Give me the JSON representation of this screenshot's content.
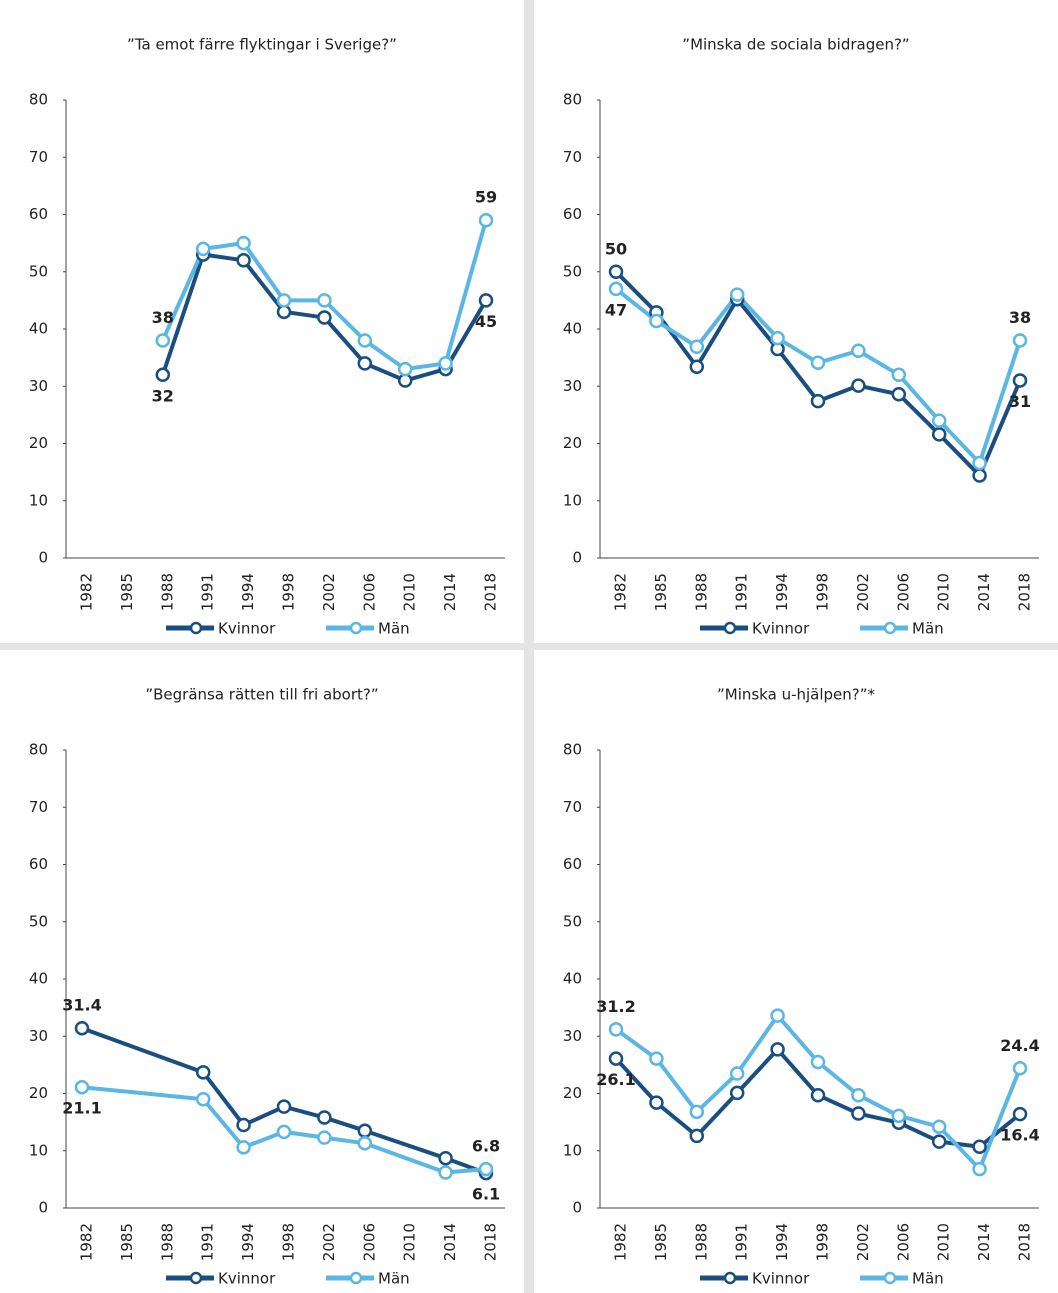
{
  "chart_data": [
    {
      "type": "line",
      "title": "”Ta emot färre flyktingar i Sverige?”",
      "categories": [
        "1982",
        "1985",
        "1988",
        "1991",
        "1994",
        "1998",
        "2002",
        "2006",
        "2010",
        "2014",
        "2018"
      ],
      "series": [
        {
          "name": "Kvinnor",
          "color": "#1a4e80",
          "values": [
            null,
            null,
            32,
            53,
            52,
            43,
            42,
            34,
            31,
            33,
            45
          ]
        },
        {
          "name": "Män",
          "color": "#5ab6e4",
          "values": [
            null,
            null,
            38,
            54,
            55,
            45,
            45,
            38,
            33,
            34,
            59
          ]
        }
      ],
      "ylim": [
        0,
        80
      ],
      "yticks": [
        0,
        10,
        20,
        30,
        40,
        50,
        60,
        70,
        80
      ],
      "grid": false,
      "connect_gaps": true,
      "legend": "bottom"
    },
    {
      "type": "line",
      "title": "”Minska de sociala bidragen?”",
      "categories": [
        "1982",
        "1985",
        "1988",
        "1991",
        "1994",
        "1998",
        "2002",
        "2006",
        "2010",
        "2014",
        "2018"
      ],
      "series": [
        {
          "name": "Kvinnor",
          "color": "#1a4e80",
          "values": [
            50,
            42.9,
            33.4,
            45.2,
            36.5,
            27.4,
            30.1,
            28.6,
            21.6,
            14.4,
            31
          ]
        },
        {
          "name": "Män",
          "color": "#5ab6e4",
          "values": [
            47,
            41.4,
            36.9,
            46,
            38.4,
            34.1,
            36.2,
            32,
            24,
            16.6,
            38
          ]
        }
      ],
      "ylim": [
        0,
        80
      ],
      "yticks": [
        0,
        10,
        20,
        30,
        40,
        50,
        60,
        70,
        80
      ],
      "grid": false,
      "connect_gaps": true,
      "legend": "bottom"
    },
    {
      "type": "line",
      "title": "”Begränsa rätten till fri abort?”",
      "categories": [
        "1982",
        "1985",
        "1988",
        "1991",
        "1994",
        "1998",
        "2002",
        "2006",
        "2010",
        "2014",
        "2018"
      ],
      "series": [
        {
          "name": "Kvinnor",
          "color": "#1a4e80",
          "values": [
            31.4,
            null,
            null,
            23.7,
            14.5,
            17.7,
            15.8,
            13.5,
            null,
            8.7,
            6.1
          ]
        },
        {
          "name": "Män",
          "color": "#5ab6e4",
          "values": [
            21.1,
            null,
            null,
            19,
            10.6,
            13.3,
            12.3,
            11.3,
            null,
            6.2,
            6.8
          ]
        }
      ],
      "ylim": [
        0,
        80
      ],
      "yticks": [
        0,
        10,
        20,
        30,
        40,
        50,
        60,
        70,
        80
      ],
      "grid": false,
      "connect_gaps": true,
      "legend": "bottom"
    },
    {
      "type": "line",
      "title": "”Minska u-hjälpen?”*",
      "categories": [
        "1982",
        "1985",
        "1988",
        "1991",
        "1994",
        "1998",
        "2002",
        "2006",
        "2010",
        "2014",
        "2018"
      ],
      "series": [
        {
          "name": "Kvinnor",
          "color": "#1a4e80",
          "values": [
            26.1,
            18.4,
            12.6,
            20.1,
            27.7,
            19.7,
            16.5,
            14.9,
            11.6,
            10.7,
            16.4
          ]
        },
        {
          "name": "Män",
          "color": "#5ab6e4",
          "values": [
            31.2,
            26.1,
            16.8,
            23.5,
            33.6,
            25.5,
            19.7,
            16.1,
            14.2,
            6.8,
            24.4
          ]
        }
      ],
      "ylim": [
        0,
        80
      ],
      "yticks": [
        0,
        10,
        20,
        30,
        40,
        50,
        60,
        70,
        80
      ],
      "grid": false,
      "connect_gaps": true,
      "legend": "bottom"
    }
  ]
}
